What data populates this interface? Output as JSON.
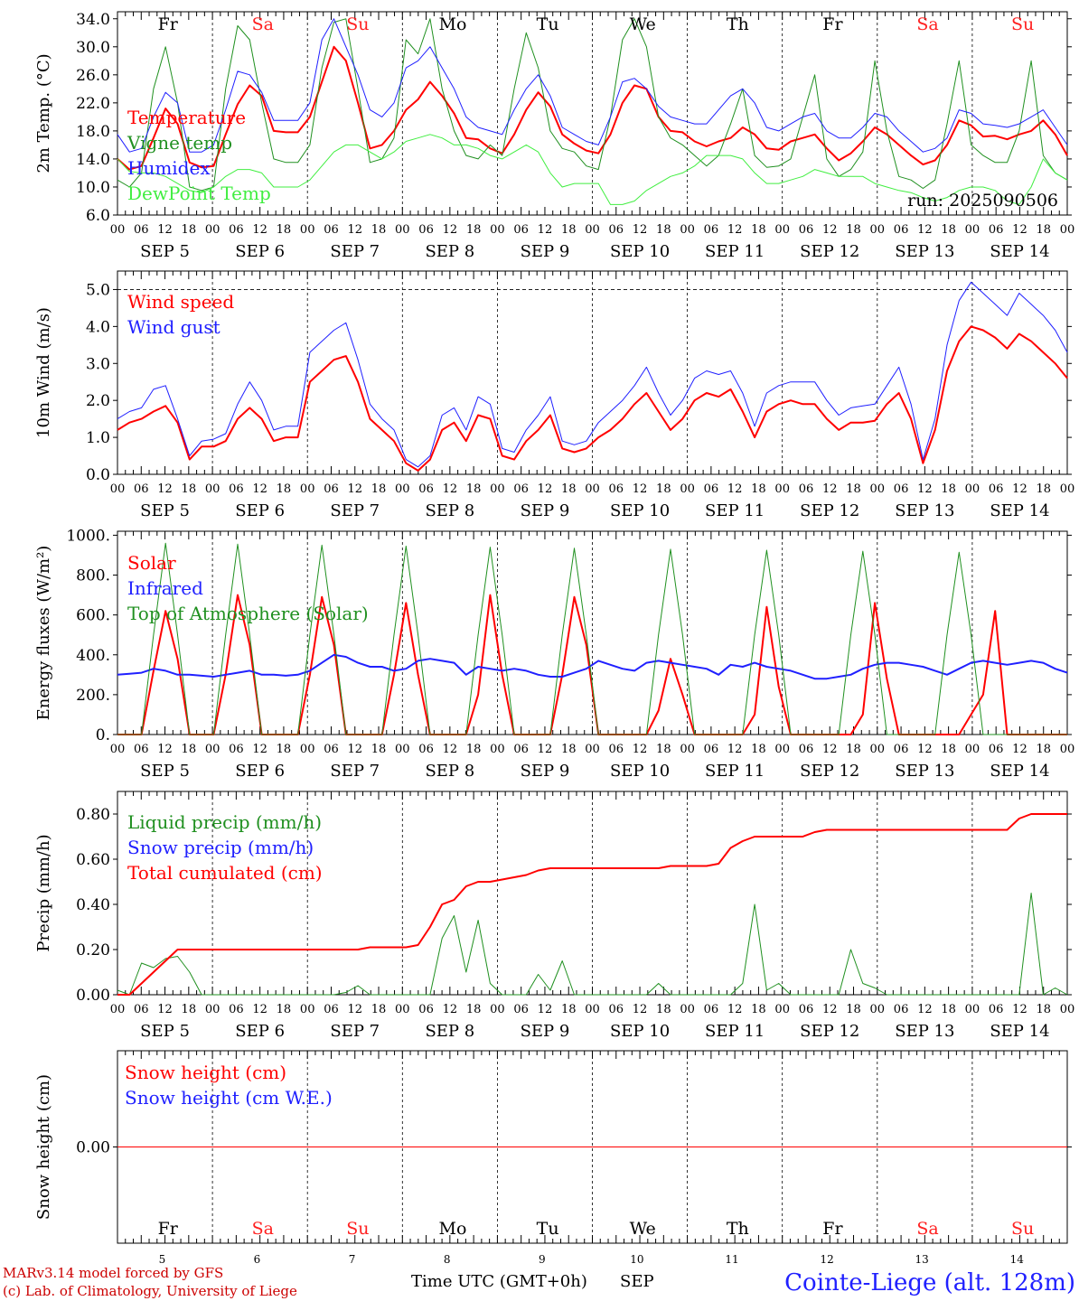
{
  "run_label": "run: 2025090506",
  "footer": {
    "model_line": "MARv3.14 model forced by GFS",
    "copyright_line": "(c) Lab. of Climatology, University of Liege",
    "xlabel": "Time UTC (GMT+0h)",
    "month": "SEP",
    "station": "Cointe-Liege (alt. 128m)"
  },
  "day_names": [
    "Fr",
    "Sa",
    "Su",
    "Mo",
    "Tu",
    "We",
    "Th",
    "Fr",
    "Sa",
    "Su"
  ],
  "weekend_color": "#ff2020",
  "day_dates": [
    "5",
    "6",
    "7",
    "8",
    "9",
    "10",
    "11",
    "12",
    "13",
    "14"
  ],
  "date_labels": [
    "SEP  5",
    "SEP  6",
    "SEP  7",
    "SEP  8",
    "SEP  9",
    "SEP 10",
    "SEP 11",
    "SEP 12",
    "SEP 13",
    "SEP 14"
  ],
  "hour_labels": [
    "00",
    "06",
    "12",
    "18"
  ],
  "chart_data": [
    {
      "type": "line",
      "ylabel": "2m Temp. (°C)",
      "ylim": [
        6.0,
        35.0
      ],
      "yticks": [
        "6.0",
        "10.0",
        "14.0",
        "18.0",
        "22.0",
        "26.0",
        "30.0",
        "34.0"
      ],
      "ytick_values": [
        6,
        10,
        14,
        18,
        22,
        26,
        30,
        34
      ],
      "hline": null,
      "legend_placement": "left",
      "series": [
        {
          "name": "Temperature",
          "color": "#ff0000",
          "width": 2,
          "values": [
            14,
            12.5,
            13,
            17,
            21.2,
            19,
            13.5,
            12.8,
            13,
            17.5,
            21.8,
            24.5,
            23,
            18,
            17.8,
            17.8,
            20,
            25,
            30,
            28,
            22,
            15.5,
            16,
            18,
            21,
            22.5,
            25,
            23,
            20.5,
            17,
            16.8,
            15.5,
            14.8,
            17.5,
            21,
            23.5,
            21.5,
            17.5,
            16.2,
            15.2,
            14.8,
            17.5,
            22,
            24.5,
            24,
            20,
            18,
            17.8,
            16.5,
            15.8,
            16.5,
            17,
            18.5,
            17.5,
            15.5,
            15.3,
            16.5,
            17,
            17.5,
            15.5,
            13.8,
            14.8,
            16.5,
            18.5,
            17.5,
            16,
            14.5,
            13.2,
            13.8,
            16,
            19.5,
            18.8,
            17.2,
            17.3,
            16.8,
            17.5,
            18,
            19.5,
            17.5,
            14.5
          ]
        },
        {
          "name": "Vigne temp",
          "color": "#209020",
          "width": 1,
          "values": [
            11,
            10,
            12,
            24,
            30,
            22,
            10,
            9.5,
            10,
            24,
            33,
            31,
            22,
            14,
            13.5,
            13.5,
            16,
            27,
            33.5,
            34,
            24,
            13.5,
            14,
            17,
            31,
            29,
            34,
            24,
            18,
            14.5,
            14,
            16,
            14.5,
            24,
            32,
            27,
            18,
            15.5,
            15,
            13,
            12.5,
            20,
            31,
            34,
            30,
            20,
            17,
            16,
            14.5,
            13,
            14.5,
            19,
            24,
            14.5,
            12.8,
            13,
            14,
            20,
            26,
            14,
            11.5,
            12.5,
            15,
            28,
            18,
            11.5,
            11,
            9.8,
            11,
            19,
            28,
            16,
            14.5,
            13.5,
            13.5,
            18,
            28,
            14.5,
            12,
            11
          ]
        },
        {
          "name": "Humidex",
          "color": "#2020ff",
          "width": 1,
          "values": [
            17.5,
            15,
            15.5,
            20,
            23.5,
            22,
            15,
            15,
            16,
            21,
            26.5,
            26,
            23.5,
            19.5,
            19.5,
            19.5,
            22,
            31,
            34,
            30,
            26,
            21,
            20,
            22,
            27,
            28,
            30,
            27,
            24,
            20,
            18.5,
            18,
            17.5,
            21,
            24,
            26,
            23,
            18.5,
            17.5,
            16.5,
            16,
            20,
            25,
            25.5,
            24,
            21.5,
            20,
            19.5,
            19,
            19,
            21,
            23,
            24,
            22,
            18.5,
            18,
            19,
            20,
            20.5,
            18,
            17,
            17,
            18.5,
            20.5,
            20,
            18,
            16.5,
            15,
            15.5,
            17,
            21,
            20.5,
            19,
            18.8,
            18.5,
            19,
            20,
            21,
            18.5,
            16
          ]
        },
        {
          "name": "DewPoint Temp",
          "color": "#40ee40",
          "width": 1,
          "values": [
            14,
            12.2,
            12,
            12,
            11.5,
            10.5,
            9.5,
            9.2,
            10,
            11.5,
            12.5,
            12.5,
            12,
            10,
            10,
            10,
            11,
            13,
            15,
            16,
            16,
            15,
            14,
            15,
            16.5,
            17,
            17.5,
            17,
            16,
            16,
            15.5,
            14.5,
            14,
            15,
            16,
            15,
            12,
            10,
            10.5,
            10.5,
            10.5,
            7.5,
            7.5,
            8,
            9.5,
            10.5,
            11.5,
            12,
            13,
            14.5,
            14.5,
            14.5,
            14,
            12,
            10.5,
            10.5,
            11,
            11.5,
            12.5,
            12,
            11.5,
            11.5,
            11.5,
            10.5,
            10,
            9.5,
            9.2,
            8.5,
            8,
            8.5,
            9.5,
            10,
            10,
            9.5,
            8,
            7.5,
            10,
            14,
            12,
            11
          ]
        }
      ]
    },
    {
      "type": "line",
      "ylabel": "10m Wind (m/s)",
      "ylim": [
        0.0,
        5.5
      ],
      "yticks": [
        "0.0",
        "1.0",
        "2.0",
        "3.0",
        "4.0",
        "5.0"
      ],
      "ytick_values": [
        0,
        1,
        2,
        3,
        4,
        5
      ],
      "hline": 5.0,
      "legend_placement": "left",
      "series": [
        {
          "name": "Wind speed",
          "color": "#ff0000",
          "width": 2,
          "values": [
            1.2,
            1.4,
            1.5,
            1.7,
            1.85,
            1.4,
            0.4,
            0.75,
            0.75,
            0.9,
            1.5,
            1.8,
            1.5,
            0.9,
            1.0,
            1.0,
            2.5,
            2.8,
            3.1,
            3.2,
            2.5,
            1.5,
            1.2,
            0.9,
            0.3,
            0.1,
            0.4,
            1.2,
            1.4,
            0.9,
            1.6,
            1.5,
            0.5,
            0.4,
            0.9,
            1.2,
            1.6,
            0.7,
            0.6,
            0.7,
            1.0,
            1.2,
            1.5,
            1.9,
            2.2,
            1.7,
            1.2,
            1.5,
            2.0,
            2.2,
            2.1,
            2.3,
            1.7,
            1.0,
            1.7,
            1.9,
            2.0,
            1.9,
            1.9,
            1.5,
            1.2,
            1.4,
            1.4,
            1.45,
            1.9,
            2.2,
            1.5,
            0.3,
            1.2,
            2.8,
            3.6,
            4.0,
            3.9,
            3.7,
            3.4,
            3.8,
            3.6,
            3.3,
            3.0,
            2.6
          ]
        },
        {
          "name": "Wind gust",
          "color": "#2020ff",
          "width": 1,
          "values": [
            1.5,
            1.7,
            1.8,
            2.3,
            2.4,
            1.5,
            0.5,
            0.9,
            0.95,
            1.1,
            1.9,
            2.5,
            2.0,
            1.2,
            1.3,
            1.3,
            3.3,
            3.6,
            3.9,
            4.1,
            3.1,
            1.9,
            1.5,
            1.2,
            0.4,
            0.2,
            0.5,
            1.6,
            1.8,
            1.2,
            2.1,
            1.9,
            0.7,
            0.6,
            1.2,
            1.6,
            2.1,
            0.9,
            0.8,
            0.9,
            1.4,
            1.7,
            2.0,
            2.4,
            2.9,
            2.2,
            1.6,
            2.0,
            2.6,
            2.8,
            2.7,
            2.8,
            2.2,
            1.3,
            2.2,
            2.4,
            2.5,
            2.5,
            2.5,
            2.0,
            1.6,
            1.8,
            1.85,
            1.9,
            2.4,
            2.9,
            1.9,
            0.4,
            1.5,
            3.5,
            4.7,
            5.2,
            4.9,
            4.6,
            4.3,
            4.9,
            4.6,
            4.3,
            3.9,
            3.3
          ]
        }
      ]
    },
    {
      "type": "line",
      "ylabel": "Energy fluxes (W/m²)",
      "ylim": [
        0,
        1020
      ],
      "yticks": [
        "0.",
        "200.",
        "400.",
        "600.",
        "800.",
        "1000."
      ],
      "ytick_values": [
        0,
        200,
        400,
        600,
        800,
        1000
      ],
      "hline": null,
      "legend_placement": "left",
      "series": [
        {
          "name": "Solar",
          "color": "#ff0000",
          "width": 2,
          "values": [
            0,
            0,
            0,
            320,
            620,
            380,
            0,
            0,
            0,
            300,
            700,
            450,
            0,
            0,
            0,
            0,
            300,
            690,
            450,
            0,
            0,
            0,
            0,
            300,
            660,
            300,
            0,
            0,
            0,
            0,
            200,
            700,
            300,
            0,
            0,
            0,
            0,
            300,
            690,
            450,
            0,
            0,
            0,
            0,
            0,
            120,
            380,
            200,
            0,
            0,
            0,
            0,
            0,
            100,
            640,
            240,
            0,
            0,
            0,
            0,
            0,
            0,
            100,
            660,
            280,
            0,
            0,
            0,
            0,
            0,
            0,
            100,
            200,
            620,
            0,
            0,
            0,
            0,
            0,
            0
          ]
        },
        {
          "name": "Infrared",
          "color": "#2020ff",
          "width": 2,
          "values": [
            300,
            305,
            310,
            330,
            320,
            300,
            300,
            295,
            290,
            300,
            310,
            320,
            300,
            300,
            295,
            300,
            320,
            360,
            400,
            390,
            360,
            340,
            340,
            320,
            330,
            370,
            380,
            370,
            360,
            300,
            340,
            330,
            320,
            330,
            320,
            300,
            290,
            290,
            310,
            330,
            370,
            350,
            330,
            320,
            360,
            370,
            360,
            350,
            340,
            330,
            300,
            350,
            340,
            360,
            340,
            330,
            320,
            300,
            280,
            280,
            290,
            300,
            330,
            350,
            360,
            360,
            350,
            340,
            320,
            300,
            330,
            360,
            370,
            360,
            350,
            360,
            370,
            360,
            330,
            310
          ]
        },
        {
          "name": "Top of Atmosphere (Solar)",
          "color": "#209020",
          "width": 1,
          "values": [
            0,
            0,
            0,
            500,
            960,
            500,
            0,
            0,
            0,
            500,
            955,
            500,
            0,
            0,
            0,
            0,
            500,
            950,
            500,
            0,
            0,
            0,
            0,
            500,
            945,
            500,
            0,
            0,
            0,
            0,
            500,
            940,
            500,
            0,
            0,
            0,
            0,
            500,
            935,
            500,
            0,
            0,
            0,
            0,
            0,
            500,
            930,
            500,
            0,
            0,
            0,
            0,
            0,
            500,
            925,
            500,
            0,
            0,
            0,
            0,
            0,
            500,
            920,
            500,
            0,
            0,
            0,
            0,
            0,
            500,
            915,
            500,
            0,
            0,
            0,
            0,
            0,
            0,
            0,
            0
          ]
        }
      ]
    },
    {
      "type": "line",
      "ylabel": "Precip (mm/h)",
      "ylim": [
        0.0,
        0.9
      ],
      "yticks": [
        "0.00",
        "0.20",
        "0.40",
        "0.60",
        "0.80"
      ],
      "ytick_values": [
        0,
        0.2,
        0.4,
        0.6,
        0.8
      ],
      "hline": null,
      "legend_placement": "left",
      "series": [
        {
          "name": "Liquid precip (mm/h)",
          "color": "#209020",
          "width": 1,
          "values": [
            0.02,
            0.0,
            0.14,
            0.12,
            0.16,
            0.17,
            0.1,
            0.0,
            0.0,
            0.0,
            0.0,
            0.0,
            0.0,
            0.0,
            0.0,
            0.0,
            0.0,
            0.0,
            0.0,
            0.01,
            0.04,
            0.0,
            0.0,
            0.0,
            0.0,
            0.0,
            0.0,
            0.25,
            0.35,
            0.1,
            0.33,
            0.05,
            0.0,
            0.0,
            0.0,
            0.09,
            0.02,
            0.15,
            0.0,
            0.0,
            0.0,
            0.0,
            0.0,
            0.0,
            0.0,
            0.05,
            0.0,
            0.0,
            0.0,
            0.0,
            0.0,
            0.0,
            0.05,
            0.4,
            0.02,
            0.05,
            0.0,
            0.0,
            0.0,
            0.0,
            0.0,
            0.2,
            0.05,
            0.03,
            0.0,
            0.0,
            0.0,
            0.0,
            0.0,
            0.0,
            0.0,
            0.0,
            0.0,
            0.0,
            0.0,
            0.0,
            0.45,
            0.0,
            0.03,
            0.0
          ]
        },
        {
          "name": "Snow precip (mm/h)",
          "color": "#2020ff",
          "width": 1,
          "values": []
        },
        {
          "name": "Total cumulated (cm)",
          "color": "#ff0000",
          "width": 2,
          "values": [
            0.0,
            0.0,
            0.05,
            0.1,
            0.15,
            0.2,
            0.2,
            0.2,
            0.2,
            0.2,
            0.2,
            0.2,
            0.2,
            0.2,
            0.2,
            0.2,
            0.2,
            0.2,
            0.2,
            0.2,
            0.2,
            0.21,
            0.21,
            0.21,
            0.21,
            0.22,
            0.3,
            0.4,
            0.42,
            0.48,
            0.5,
            0.5,
            0.51,
            0.52,
            0.53,
            0.55,
            0.56,
            0.56,
            0.56,
            0.56,
            0.56,
            0.56,
            0.56,
            0.56,
            0.56,
            0.56,
            0.57,
            0.57,
            0.57,
            0.57,
            0.58,
            0.65,
            0.68,
            0.7,
            0.7,
            0.7,
            0.7,
            0.7,
            0.72,
            0.73,
            0.73,
            0.73,
            0.73,
            0.73,
            0.73,
            0.73,
            0.73,
            0.73,
            0.73,
            0.73,
            0.73,
            0.73,
            0.73,
            0.73,
            0.73,
            0.78,
            0.8,
            0.8,
            0.8,
            0.8
          ]
        }
      ]
    },
    {
      "type": "line",
      "ylabel": "Snow height (cm)",
      "ylim": [
        -1,
        1
      ],
      "yticks": [
        "0.00"
      ],
      "ytick_values": [
        0
      ],
      "hline": null,
      "legend_placement": "left",
      "series": [
        {
          "name": "Snow height (cm)",
          "color": "#ff0000",
          "width": 1,
          "values": [
            0,
            0
          ]
        },
        {
          "name": "Snow height (cm W.E.)",
          "color": "#2020ff",
          "width": 1,
          "values": []
        }
      ]
    }
  ]
}
